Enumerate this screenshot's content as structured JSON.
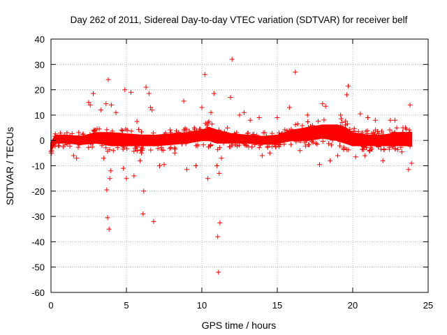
{
  "chart_data": {
    "type": "scatter",
    "title": "Day 262 of 2011, Sidereal Day-to-day VTEC variation (SDTVAR) for receiver belf",
    "xlabel": "GPS time / hours",
    "ylabel": "SDTVAR / TECUs",
    "xlim": [
      0,
      25
    ],
    "ylim": [
      -60,
      40
    ],
    "xticks": [
      0,
      5,
      10,
      15,
      20,
      25
    ],
    "yticks": [
      40,
      30,
      20,
      10,
      0,
      -10,
      -20,
      -30,
      -40,
      -50,
      -60
    ],
    "grid": true,
    "marker": "+",
    "color": "#ff0000",
    "band": {
      "description": "dense continuous band of samples",
      "x": [
        0.0,
        0.3,
        1.0,
        2.0,
        3.0,
        4.0,
        5.0,
        6.0,
        7.0,
        8.0,
        9.0,
        10.0,
        10.5,
        11.0,
        12.0,
        13.0,
        14.0,
        15.0,
        16.0,
        17.0,
        18.0,
        19.0,
        19.5,
        20.0,
        21.0,
        22.0,
        23.0,
        23.9
      ],
      "upper": [
        -1,
        2,
        2,
        1.5,
        3,
        3,
        2.5,
        2,
        2,
        2.5,
        3,
        4,
        5,
        4,
        2.5,
        2,
        1.5,
        2,
        4,
        5,
        6,
        6,
        5,
        3,
        2,
        2,
        3,
        3
      ],
      "lower": [
        -4,
        -1,
        -1,
        -1.5,
        -1,
        -2,
        -2,
        -2,
        -2,
        -1.5,
        -1,
        0,
        0,
        -1,
        -1,
        -1,
        -1.5,
        -1,
        0,
        0,
        1,
        0,
        -1,
        -2,
        -2,
        -2,
        -2,
        -2
      ]
    },
    "outliers": {
      "x": [
        3.85,
        3.75,
        3.8,
        3.7,
        3.9,
        3.95,
        4.0,
        3.65,
        6.1,
        6.15,
        6.8,
        6.3,
        6.5,
        5.5,
        5.3,
        11.1,
        11.05,
        11.2,
        11.0,
        11.15,
        10.2,
        10.4,
        12.0,
        11.9,
        10.8,
        10.0,
        2.8,
        2.5,
        2.6,
        4.8,
        5.0,
        4.9,
        8.8,
        9.0,
        6.0,
        5.9,
        7.2,
        16.2,
        19.7,
        19.6,
        23.8,
        23.7,
        23.9,
        18.0,
        18.2,
        17.8,
        15.8,
        20.5,
        21.0,
        22.5,
        13.8,
        14.0,
        1.5,
        1.7,
        9.6,
        8.2,
        7.5,
        12.5,
        12.8,
        18.5,
        20.2,
        20.8,
        21.5,
        22.0,
        17.0,
        16.5,
        15.0,
        14.5,
        3.3,
        3.5,
        4.3,
        6.6,
        6.7,
        5.7,
        10.6,
        11.3,
        13.2,
        19.0,
        19.2,
        22.8,
        23.5
      ],
      "y": [
        -35,
        -30.5,
        24,
        -19.5,
        -15,
        -12,
        14,
        14.5,
        -29,
        -20,
        -32,
        21,
        18.5,
        -14,
        19,
        -52,
        -38,
        -32.5,
        -10,
        -13,
        26,
        -15,
        32,
        17,
        18.5,
        13,
        18.5,
        15,
        14,
        -11,
        -15,
        20,
        15.5,
        -11.5,
        -5,
        -8,
        -10,
        27,
        21.5,
        18,
        14,
        -11.5,
        -9,
        14.5,
        13.5,
        -9.5,
        13,
        10.5,
        9,
        8,
        9,
        -6,
        -6,
        -7,
        -10,
        -5,
        -9.5,
        10,
        11,
        -8,
        -6.5,
        -6,
        8,
        -8,
        10,
        -4,
        9,
        -5,
        12,
        -7,
        11,
        13,
        12,
        7.5,
        11,
        -7,
        8,
        -6,
        10,
        8,
        5
      ]
    }
  }
}
